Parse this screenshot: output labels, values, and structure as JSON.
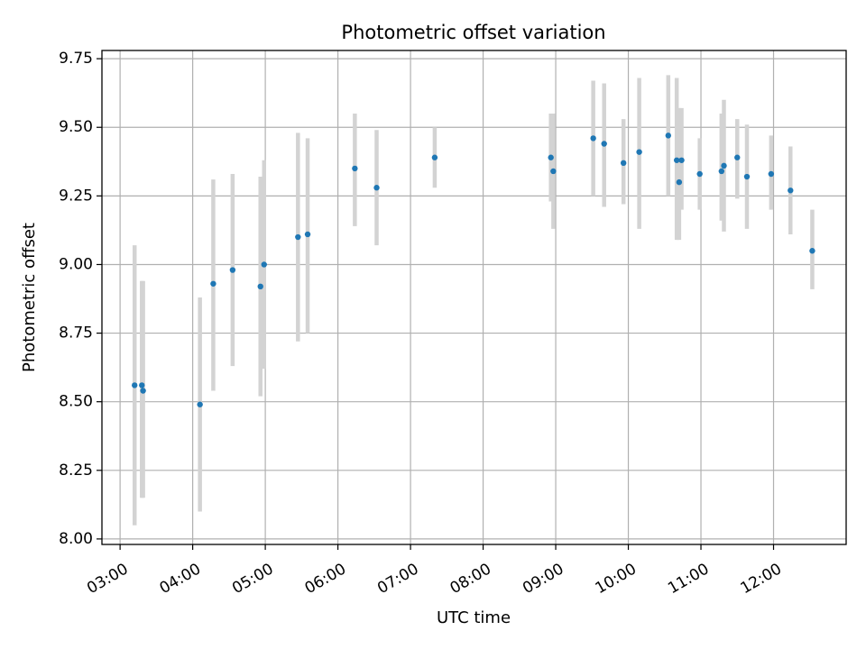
{
  "chart_data": {
    "type": "scatter",
    "title": "Photometric offset variation",
    "xlabel": "UTC time",
    "ylabel": "Photometric offset",
    "x_axis_type": "time",
    "xlim": [
      "02:45",
      "13:00"
    ],
    "ylim": [
      7.98,
      9.78
    ],
    "x_ticks": [
      "03:00",
      "04:00",
      "05:00",
      "06:00",
      "07:00",
      "08:00",
      "09:00",
      "10:00",
      "11:00",
      "12:00"
    ],
    "y_ticks": [
      "8.00",
      "8.25",
      "8.50",
      "8.75",
      "9.00",
      "9.25",
      "9.50",
      "9.75"
    ],
    "grid": true,
    "colors": {
      "point": "#1f77b4",
      "error_bar": "#d3d3d3",
      "grid": "#b0b0b0"
    },
    "points": [
      {
        "x": "03:12",
        "y": 8.56,
        "low": 8.05,
        "high": 9.07
      },
      {
        "x": "03:18",
        "y": 8.56,
        "low": 8.15,
        "high": 8.94
      },
      {
        "x": "03:19",
        "y": 8.54,
        "low": 8.15,
        "high": 8.94
      },
      {
        "x": "04:06",
        "y": 8.49,
        "low": 8.1,
        "high": 8.88
      },
      {
        "x": "04:17",
        "y": 8.93,
        "low": 8.54,
        "high": 9.31
      },
      {
        "x": "04:33",
        "y": 8.98,
        "low": 8.63,
        "high": 9.33
      },
      {
        "x": "04:56",
        "y": 8.92,
        "low": 8.52,
        "high": 9.32
      },
      {
        "x": "04:59",
        "y": 9.0,
        "low": 8.62,
        "high": 9.38
      },
      {
        "x": "05:27",
        "y": 9.1,
        "low": 8.72,
        "high": 9.48
      },
      {
        "x": "05:35",
        "y": 9.11,
        "low": 8.75,
        "high": 9.46
      },
      {
        "x": "06:14",
        "y": 9.35,
        "low": 9.14,
        "high": 9.55
      },
      {
        "x": "06:32",
        "y": 9.28,
        "low": 9.07,
        "high": 9.49
      },
      {
        "x": "07:20",
        "y": 9.39,
        "low": 9.28,
        "high": 9.5
      },
      {
        "x": "08:56",
        "y": 9.39,
        "low": 9.23,
        "high": 9.55
      },
      {
        "x": "08:58",
        "y": 9.34,
        "low": 9.13,
        "high": 9.55
      },
      {
        "x": "09:31",
        "y": 9.46,
        "low": 9.25,
        "high": 9.67
      },
      {
        "x": "09:40",
        "y": 9.44,
        "low": 9.21,
        "high": 9.66
      },
      {
        "x": "09:56",
        "y": 9.37,
        "low": 9.22,
        "high": 9.53
      },
      {
        "x": "10:09",
        "y": 9.41,
        "low": 9.13,
        "high": 9.68
      },
      {
        "x": "10:33",
        "y": 9.47,
        "low": 9.25,
        "high": 9.69
      },
      {
        "x": "10:40",
        "y": 9.38,
        "low": 9.09,
        "high": 9.68
      },
      {
        "x": "10:42",
        "y": 9.3,
        "low": 9.09,
        "high": 9.57
      },
      {
        "x": "10:44",
        "y": 9.38,
        "low": 9.2,
        "high": 9.57
      },
      {
        "x": "10:59",
        "y": 9.33,
        "low": 9.2,
        "high": 9.46
      },
      {
        "x": "11:17",
        "y": 9.34,
        "low": 9.16,
        "high": 9.55
      },
      {
        "x": "11:19",
        "y": 9.36,
        "low": 9.12,
        "high": 9.6
      },
      {
        "x": "11:30",
        "y": 9.39,
        "low": 9.24,
        "high": 9.53
      },
      {
        "x": "11:38",
        "y": 9.32,
        "low": 9.13,
        "high": 9.51
      },
      {
        "x": "11:58",
        "y": 9.33,
        "low": 9.2,
        "high": 9.47
      },
      {
        "x": "12:14",
        "y": 9.27,
        "low": 9.11,
        "high": 9.43
      },
      {
        "x": "12:32",
        "y": 9.05,
        "low": 8.91,
        "high": 9.2
      }
    ]
  }
}
